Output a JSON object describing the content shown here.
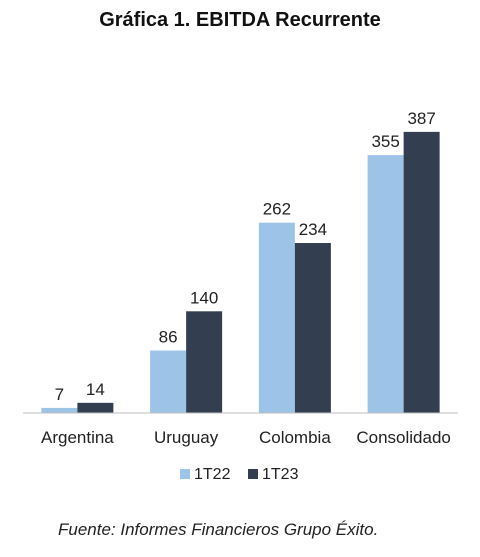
{
  "chart_data": {
    "type": "bar",
    "title": "Gráfica 1. EBITDA Recurrente",
    "categories": [
      "Argentina",
      "Uruguay",
      "Colombia",
      "Consolidado"
    ],
    "series": [
      {
        "name": "1T22",
        "values": [
          7,
          86,
          262,
          355
        ],
        "color": "#9dc3e6"
      },
      {
        "name": "1T23",
        "values": [
          14,
          140,
          234,
          387
        ],
        "color": "#333f50"
      }
    ],
    "ylim": [
      0,
      400
    ],
    "grid": false,
    "legend": "bottom",
    "source": "Fuente: Informes Financieros Grupo Éxito."
  }
}
